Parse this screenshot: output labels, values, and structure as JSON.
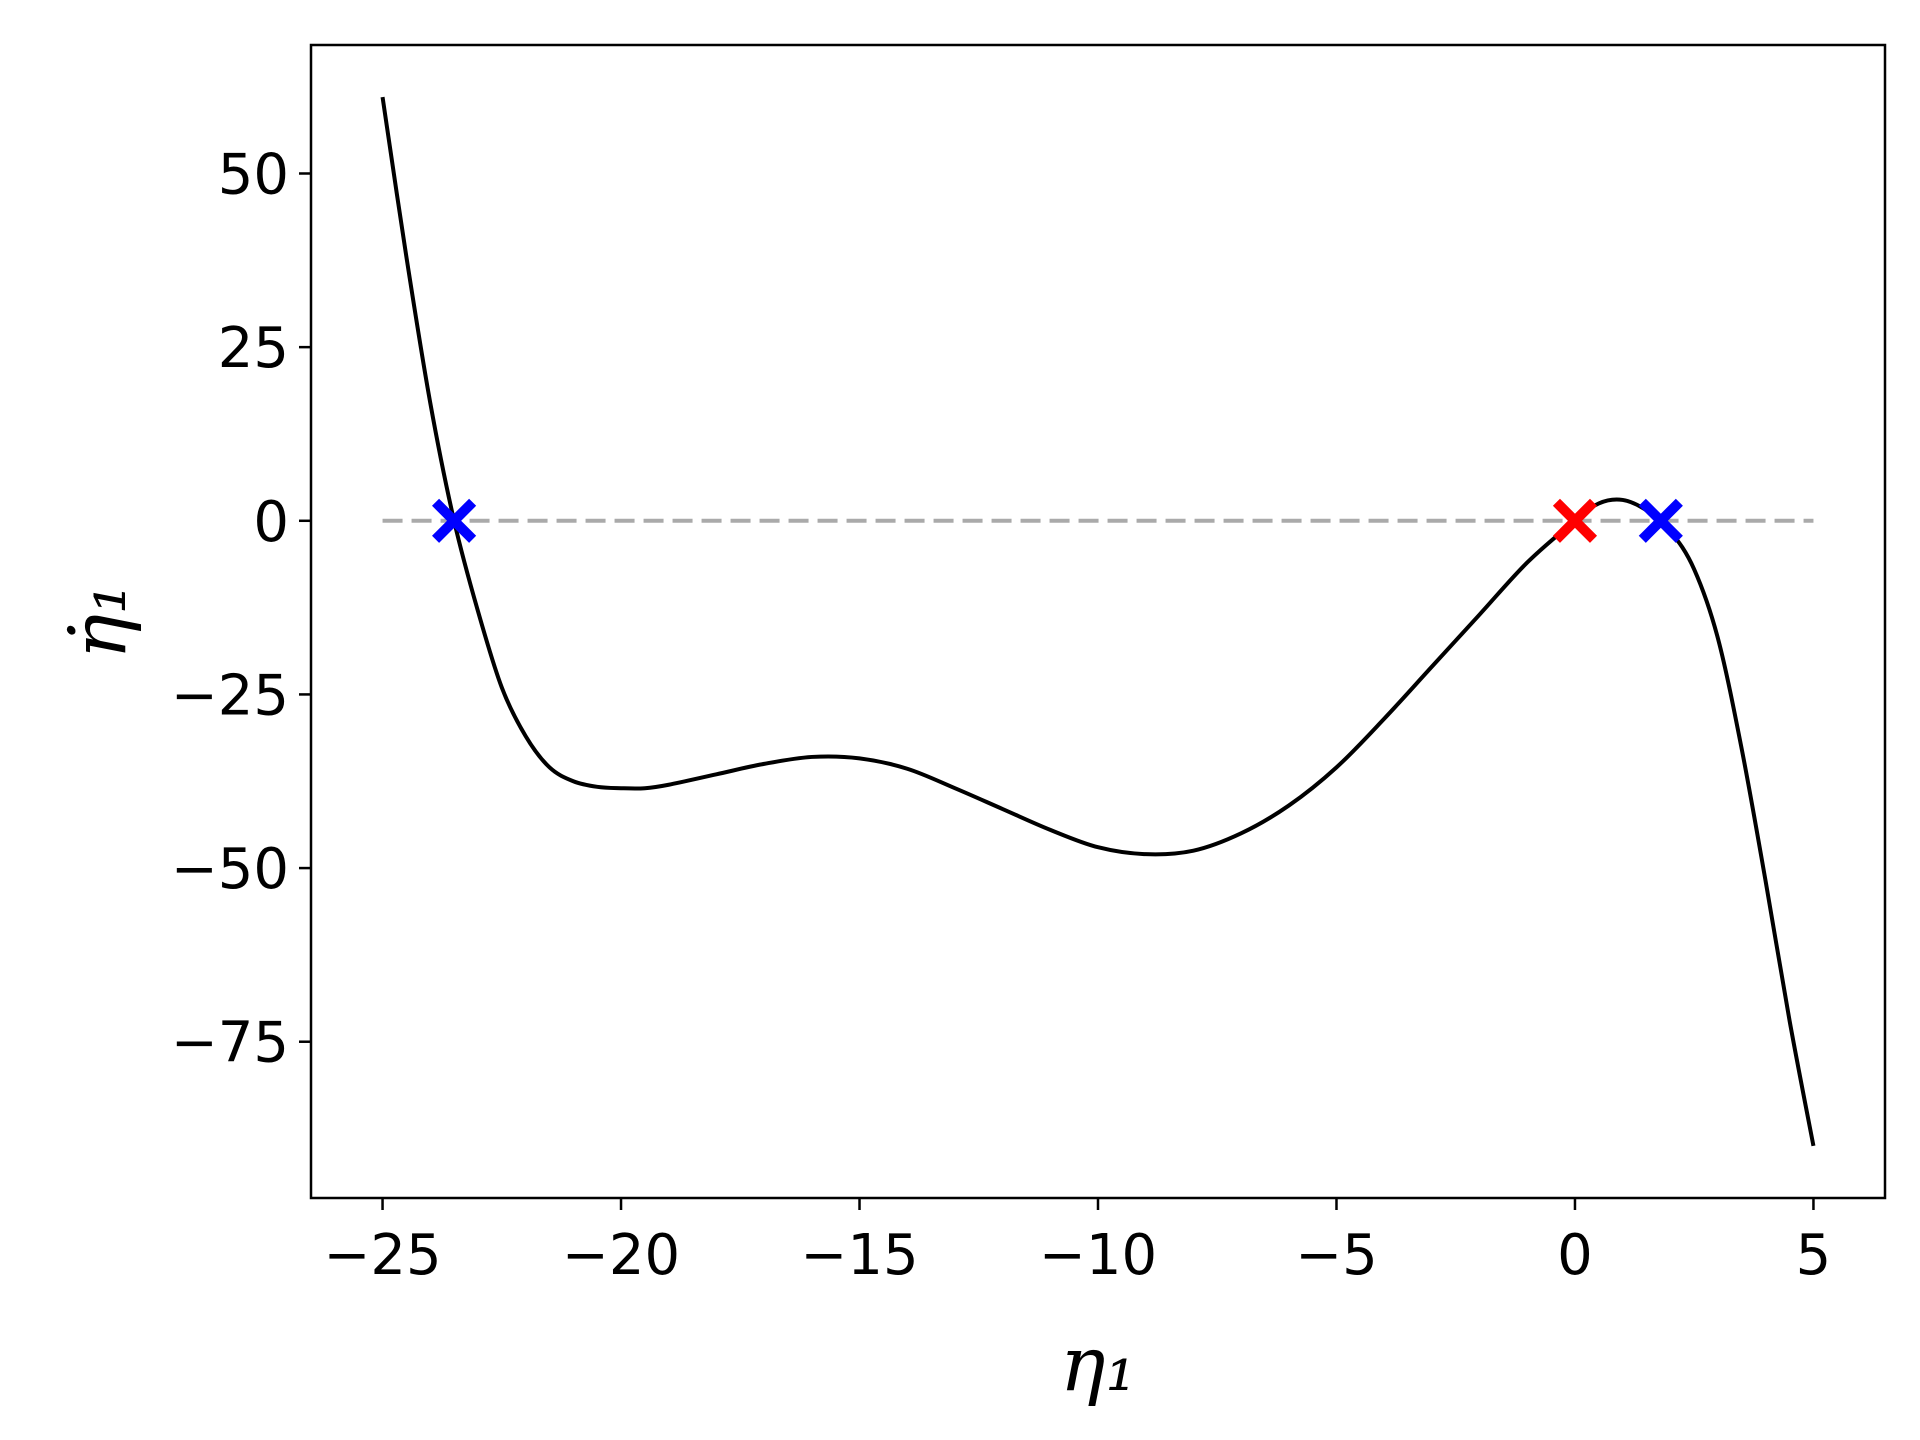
{
  "chart_data": {
    "type": "line",
    "xlabel": "η₁",
    "ylabel": "η̇₁",
    "xlim": [
      -26.5,
      6.5
    ],
    "ylim": [
      -97.5,
      68.5
    ],
    "xticks": [
      -25,
      -20,
      -15,
      -10,
      -5,
      0,
      5
    ],
    "xtick_labels": [
      "−25",
      "−20",
      "−15",
      "−10",
      "−5",
      "0",
      "5"
    ],
    "yticks": [
      50,
      25,
      0,
      -25,
      -50,
      -75
    ],
    "ytick_labels": [
      "50",
      "25",
      "0",
      "−25",
      "−50",
      "−75"
    ],
    "grid": false,
    "legend": "none",
    "series": [
      {
        "color": "#000000",
        "style": "solid",
        "x": [
          -25,
          -24.5,
          -24,
          -23.5,
          -23,
          -22.5,
          -22,
          -21.5,
          -21,
          -20.5,
          -20,
          -19.5,
          -19,
          -18,
          -17,
          -16,
          -15,
          -14,
          -13,
          -12,
          -11,
          -10,
          -9,
          -8,
          -7,
          -6,
          -5,
          -4,
          -3,
          -2,
          -1,
          0,
          0.5,
          1,
          1.5,
          2,
          2.5,
          3,
          3.5,
          4,
          4.5,
          5
        ],
        "y": [
          61,
          38,
          17,
          0,
          -13,
          -24,
          -31,
          -35.5,
          -37.5,
          -38.3,
          -38.5,
          -38.5,
          -38,
          -36.5,
          -35,
          -34,
          -34.2,
          -35.7,
          -38.5,
          -41.5,
          -44.5,
          -47,
          -48,
          -47.5,
          -45,
          -41,
          -35.5,
          -28.5,
          -21,
          -13.5,
          -6,
          0,
          2.5,
          3,
          1.5,
          -1.5,
          -7,
          -17,
          -33,
          -52,
          -72,
          -90
        ]
      },
      {
        "color": "#aaaaaa",
        "style": "dashed",
        "x": [
          -25,
          5
        ],
        "y": [
          0,
          0
        ]
      }
    ],
    "markers": [
      {
        "x": -23.5,
        "y": 0,
        "color": "#0000ff",
        "shape": "X"
      },
      {
        "x": 0,
        "y": 0,
        "color": "#ff0000",
        "shape": "X"
      },
      {
        "x": 1.8,
        "y": 0,
        "color": "#0000ff",
        "shape": "X"
      }
    ]
  }
}
